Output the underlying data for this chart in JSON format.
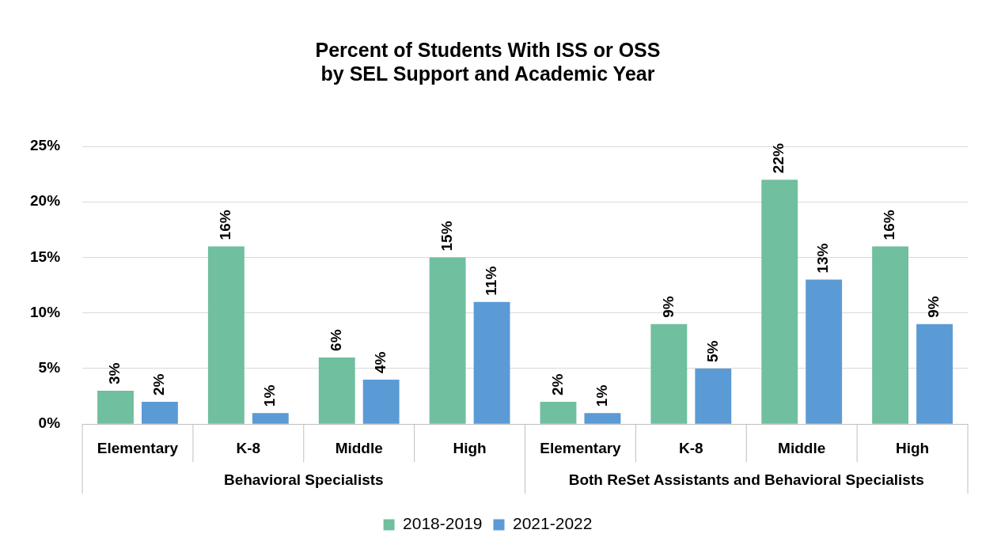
{
  "chart_data": {
    "type": "bar",
    "title": "Percent of Students With ISS or OSS\nby SEL Support and Academic Year",
    "categories": [
      "Elementary",
      "K-8",
      "Middle",
      "High",
      "Elementary",
      "K-8",
      "Middle",
      "High"
    ],
    "annotations": [
      "Behavioral Specialists",
      "Both ReSet Assistants and Behavioral Specialists"
    ],
    "series": [
      {
        "name": "2018-2019",
        "color": "#70bf9f",
        "values": [
          3,
          16,
          6,
          15,
          2,
          9,
          22,
          16
        ],
        "value_labels": [
          "3%",
          "16%",
          "6%",
          "15%",
          "2%",
          "9%",
          "22%",
          "16%"
        ]
      },
      {
        "name": "2021-2022",
        "color": "#5b9bd5",
        "values": [
          2,
          1,
          4,
          11,
          1,
          5,
          13,
          9
        ],
        "value_labels": [
          "2%",
          "1%",
          "4%",
          "11%",
          "1%",
          "5%",
          "13%",
          "9%"
        ]
      }
    ],
    "ylim": [
      0,
      25
    ],
    "yticks": [
      {
        "value": 0,
        "label": "0%"
      },
      {
        "value": 5,
        "label": "5%"
      },
      {
        "value": 10,
        "label": "10%"
      },
      {
        "value": 15,
        "label": "15%"
      },
      {
        "value": 20,
        "label": "20%"
      },
      {
        "value": 25,
        "label": "25%"
      }
    ],
    "grid": "y",
    "legend": "bottom"
  }
}
